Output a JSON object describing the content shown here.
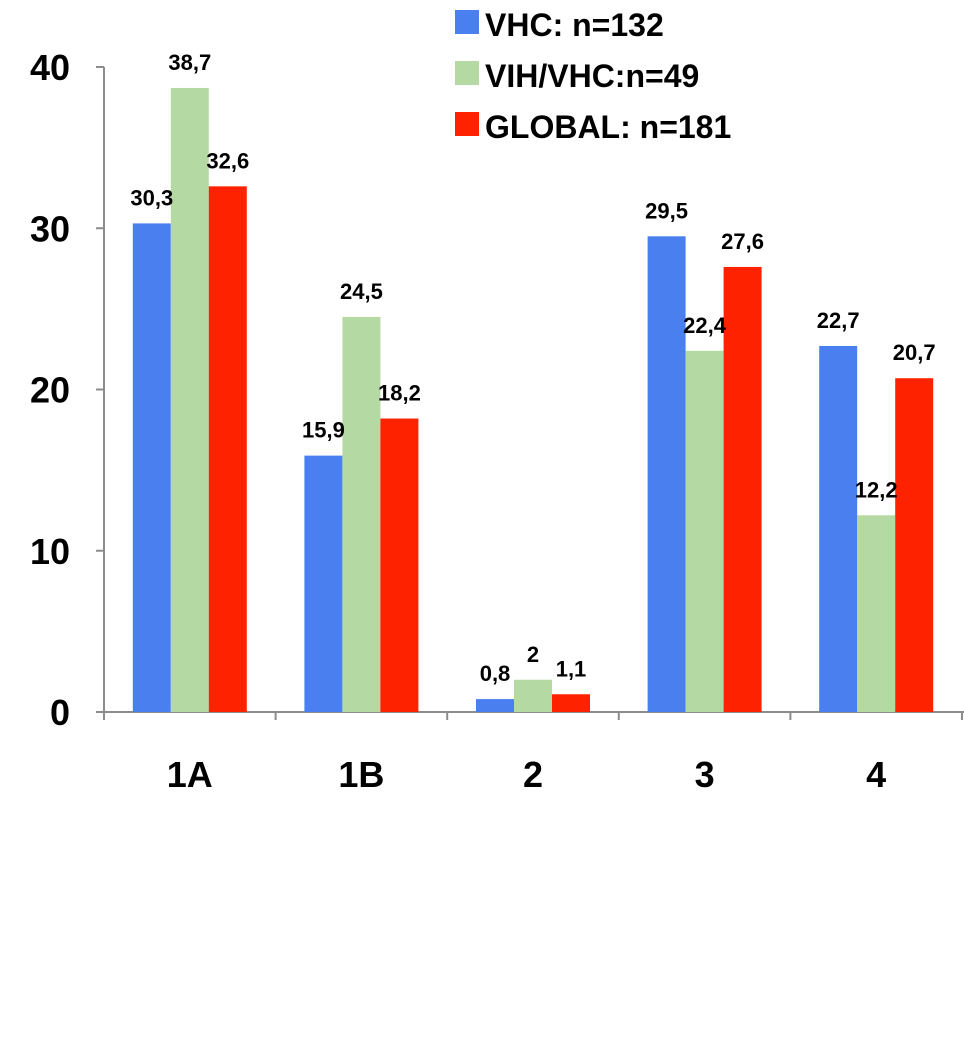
{
  "chart_data": {
    "type": "bar",
    "categories": [
      "1A",
      "1B",
      "2",
      "3",
      "4"
    ],
    "series": [
      {
        "name": "VHC: n=132",
        "color": "#4a7ff0",
        "values": [
          30.3,
          15.9,
          0.8,
          29.5,
          22.7
        ],
        "labels": [
          "30,3",
          "15,9",
          "0,8",
          "29,5",
          "22,7"
        ]
      },
      {
        "name": "VIH/VHC:n=49",
        "color": "#b5d9a3",
        "values": [
          38.7,
          24.5,
          2,
          22.4,
          12.2
        ],
        "labels": [
          "38,7",
          "24,5",
          "2",
          "22,4",
          "12,2"
        ]
      },
      {
        "name": "GLOBAL: n=181",
        "color": "#ff2200",
        "values": [
          32.6,
          18.2,
          1.1,
          27.6,
          20.7
        ],
        "labels": [
          "32,6",
          "18,2",
          "1,1",
          "27,6",
          "20,7"
        ]
      }
    ],
    "yticks": [
      "0",
      "10",
      "20",
      "30",
      "40"
    ],
    "ylim": [
      0,
      40
    ],
    "legend_position": "top-right",
    "grid": false
  }
}
